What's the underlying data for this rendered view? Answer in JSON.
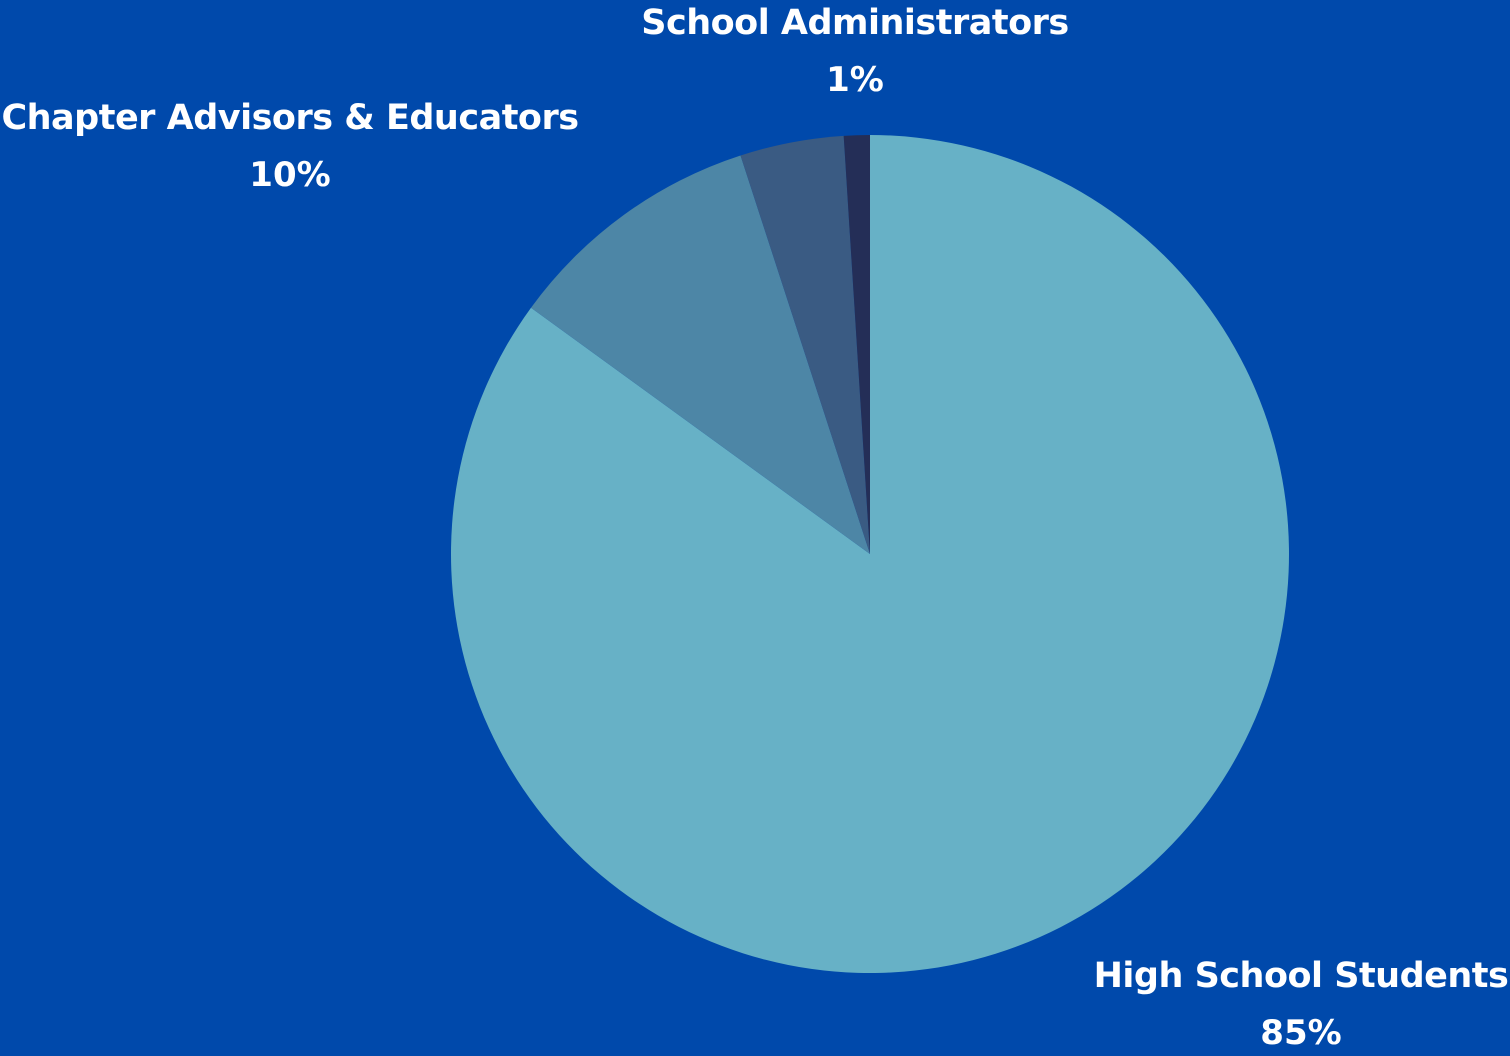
{
  "chart_data": {
    "type": "pie",
    "start_angle": "12 o'clock",
    "direction": "clockwise",
    "slices": [
      {
        "label": "High School Students",
        "value_label": "85%",
        "value": 85,
        "color": "#67b1c6",
        "labeled": true
      },
      {
        "label": "Chapter Advisors & Educators",
        "value_label": "10%",
        "value": 10,
        "color": "#4d86a6",
        "labeled": true
      },
      {
        "label": "",
        "value_label": "",
        "value": 4,
        "color": "#3a5b83",
        "labeled": false
      },
      {
        "label": "School Administrators",
        "value_label": "1%",
        "value": 1,
        "color": "#242e57",
        "labeled": true
      }
    ]
  },
  "colors": {
    "background": "#0049ab",
    "label_text": "#ffffff"
  }
}
